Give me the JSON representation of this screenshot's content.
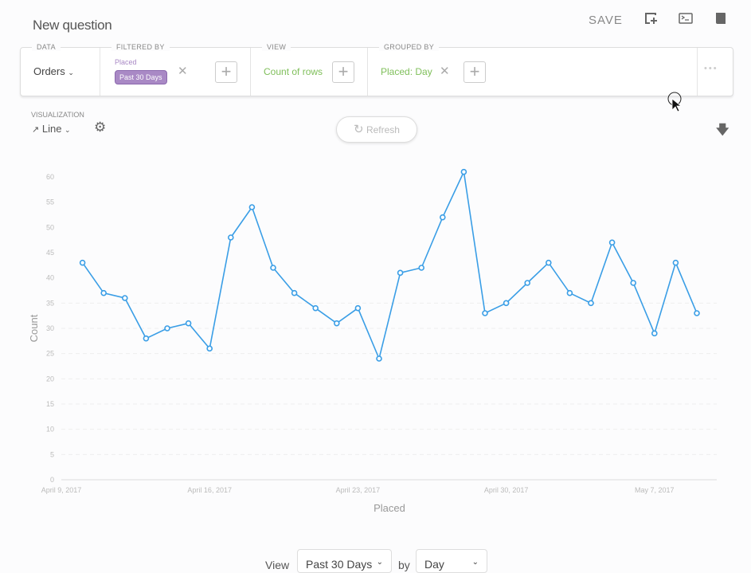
{
  "header": {
    "title": "New question",
    "save_label": "SAVE",
    "icons": [
      "add-to-dashboard-icon",
      "sql-console-icon",
      "reference-book-icon"
    ]
  },
  "query_bar": {
    "data": {
      "label": "DATA",
      "value": "Orders"
    },
    "filtered_by": {
      "label": "FILTERED BY",
      "field": "Placed",
      "value": "Past 30 Days"
    },
    "view": {
      "label": "VIEW",
      "value": "Count of rows"
    },
    "grouped_by": {
      "label": "GROUPED BY",
      "value": "Placed: Day"
    },
    "more": "•••"
  },
  "visualization": {
    "label": "VISUALIZATION",
    "type": "Line"
  },
  "refresh_label": "Refresh",
  "colors": {
    "line": "#3a9ee6",
    "filter_pill": "#a989c5",
    "accent_green": "#7fbf5a"
  },
  "chart_data": {
    "type": "line",
    "xlabel": "Placed",
    "ylabel": "Count",
    "ylim": [
      0,
      60
    ],
    "yticks": [
      0,
      5,
      10,
      15,
      20,
      25,
      30,
      35,
      40,
      45,
      50,
      55,
      60
    ],
    "xtick_labels": [
      "April 9, 2017",
      "April 16, 2017",
      "April 23, 2017",
      "April 30, 2017",
      "May 7, 2017"
    ],
    "x_start": "2017-04-10",
    "x_end": "2017-05-09",
    "values": [
      43,
      37,
      36,
      28,
      30,
      31,
      26,
      48,
      54,
      42,
      37,
      34,
      31,
      34,
      24,
      41,
      42,
      52,
      61,
      33,
      35,
      39,
      43,
      37,
      35,
      47,
      39,
      29,
      43,
      33
    ],
    "grid": true
  },
  "footer": {
    "view_label": "View",
    "range": "Past 30 Days",
    "by_label": "by",
    "unit": "Day"
  }
}
